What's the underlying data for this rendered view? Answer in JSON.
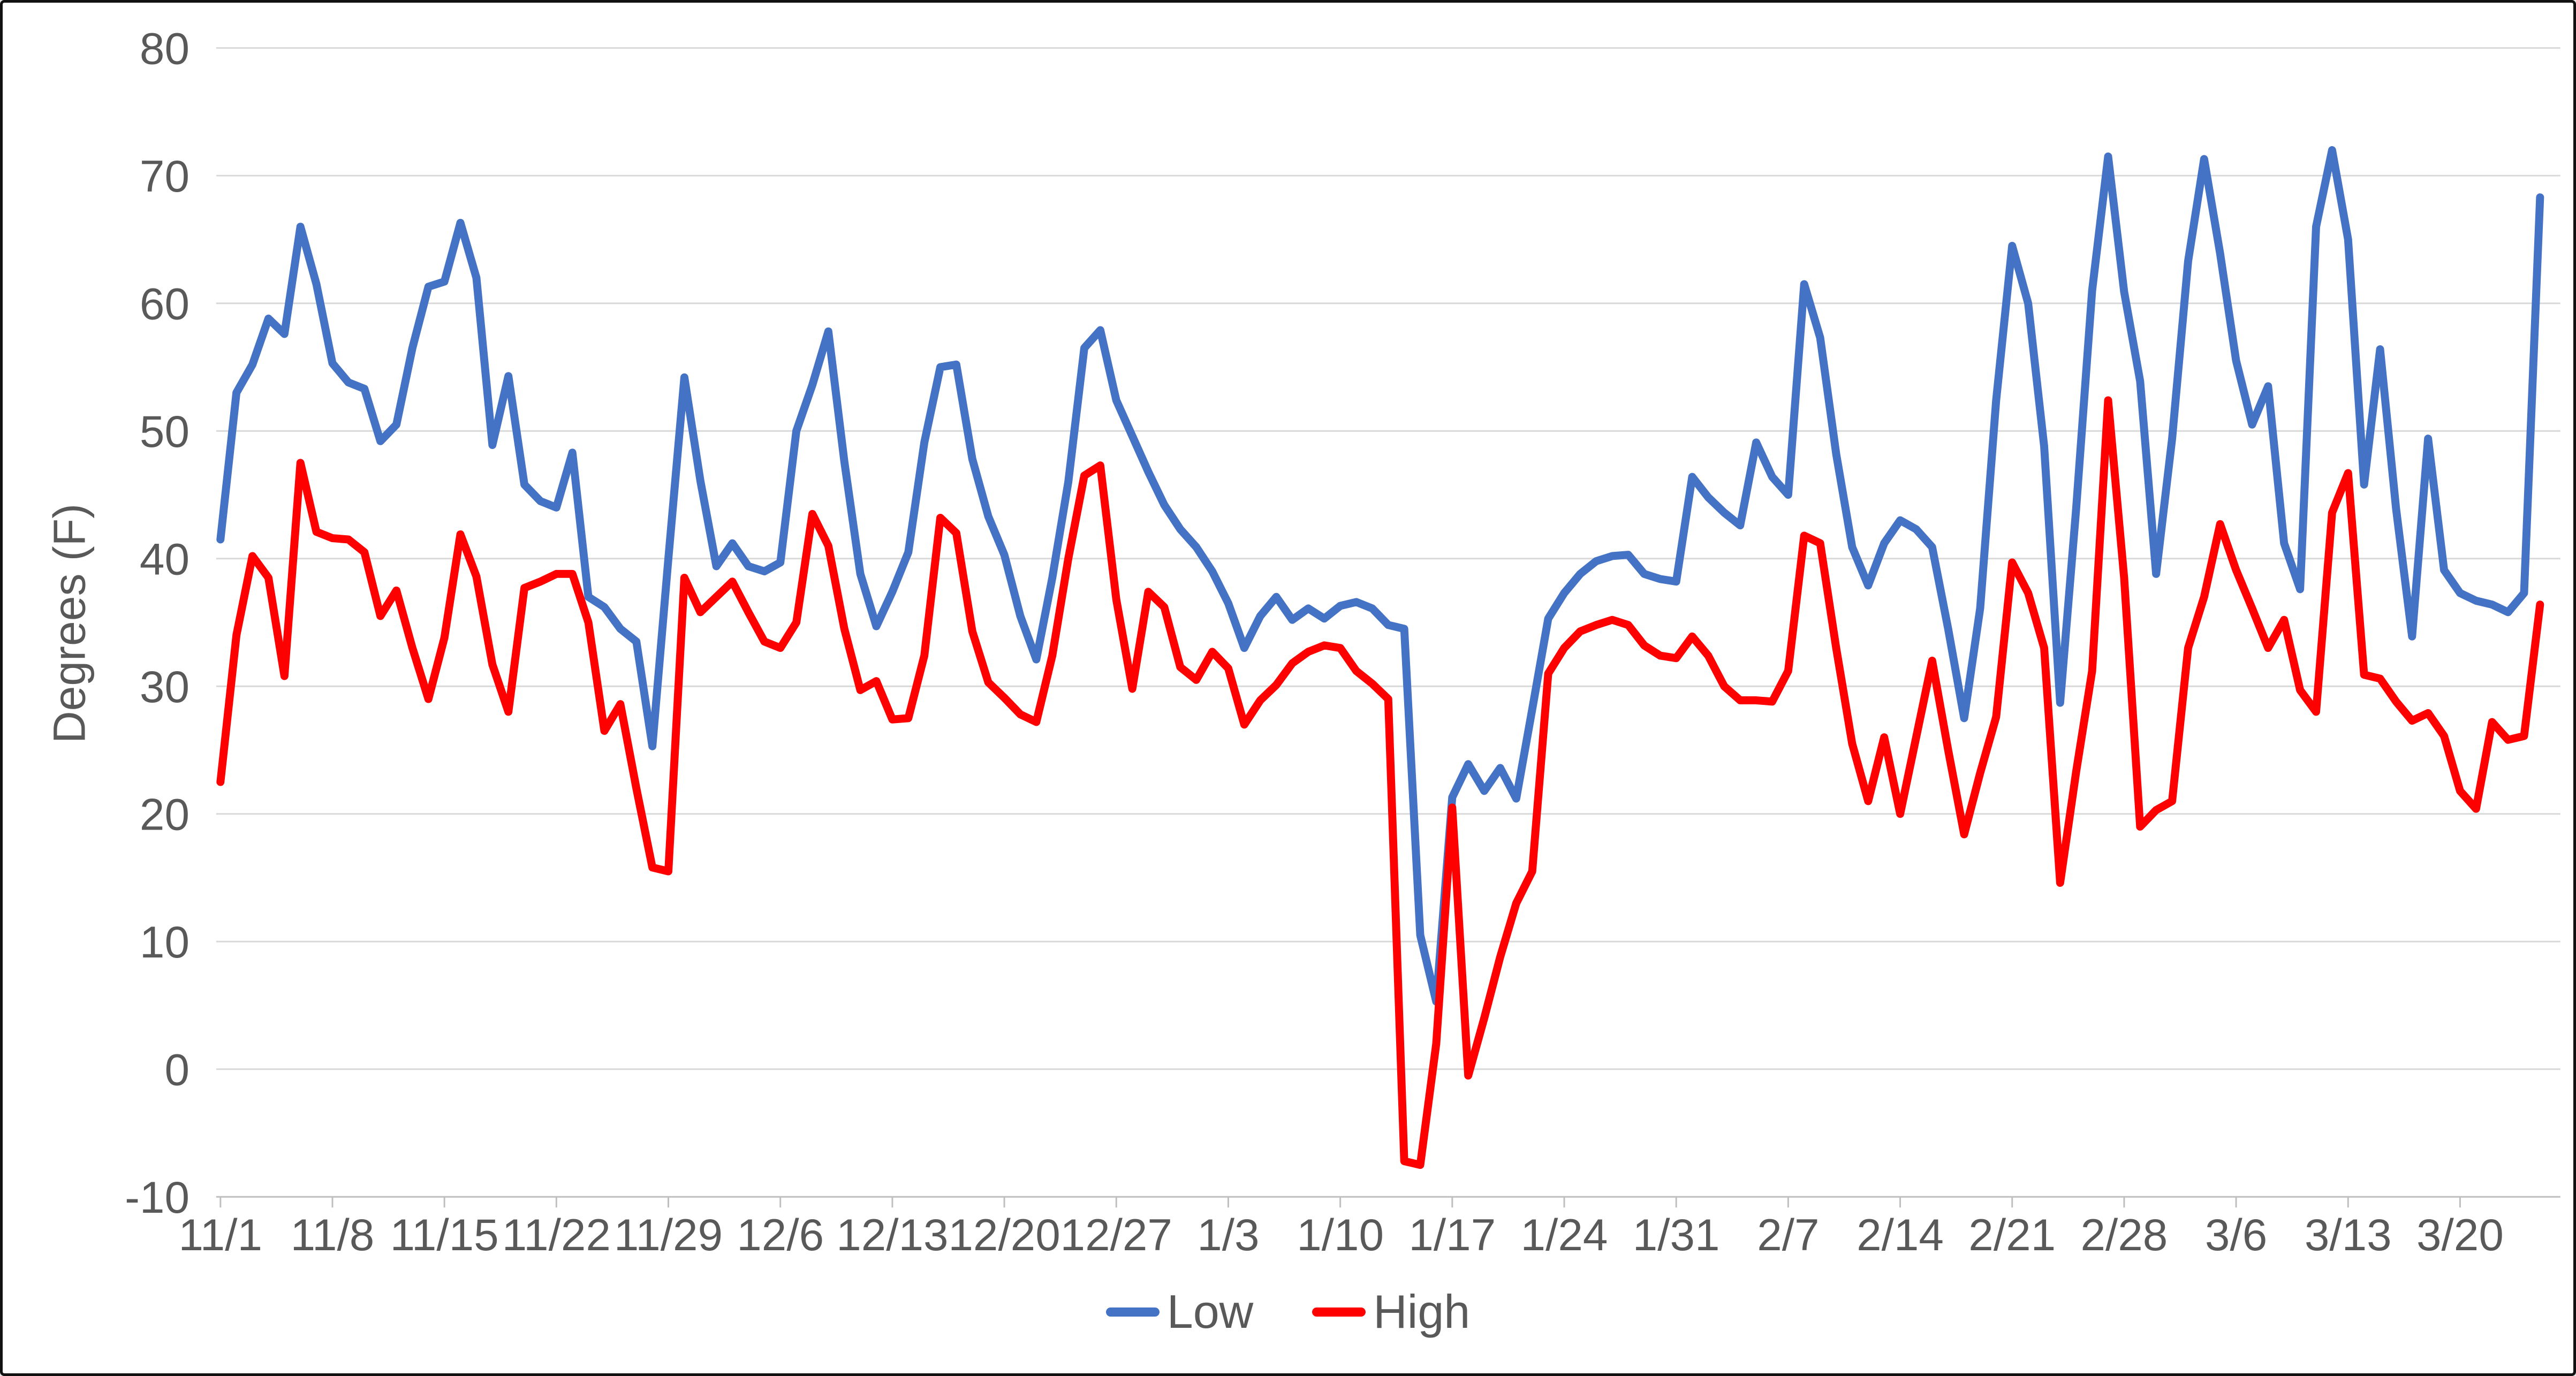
{
  "chart_data": {
    "type": "line",
    "title": "",
    "xlabel": "",
    "ylabel": "Degrees (F)",
    "ylim": [
      -10,
      80
    ],
    "ytick_step": 10,
    "ytick_labels": [
      "80",
      "70",
      "60",
      "50",
      "40",
      "30",
      "20",
      "10",
      "0",
      "-10"
    ],
    "grid": true,
    "legend_position": "bottom-center",
    "x_tick_labels": [
      "11/1",
      "11/8",
      "11/15",
      "11/22",
      "11/29",
      "12/6",
      "12/13",
      "12/20",
      "12/27",
      "1/3",
      "1/10",
      "1/17",
      "1/24",
      "1/31",
      "2/7",
      "2/14",
      "2/21",
      "2/28",
      "3/6",
      "3/13",
      "3/20"
    ],
    "x": [
      "11/1",
      "11/2",
      "11/3",
      "11/4",
      "11/5",
      "11/6",
      "11/7",
      "11/8",
      "11/9",
      "11/10",
      "11/11",
      "11/12",
      "11/13",
      "11/14",
      "11/15",
      "11/16",
      "11/17",
      "11/18",
      "11/19",
      "11/20",
      "11/21",
      "11/22",
      "11/23",
      "11/24",
      "11/25",
      "11/26",
      "11/27",
      "11/28",
      "11/29",
      "11/30",
      "12/1",
      "12/2",
      "12/3",
      "12/4",
      "12/5",
      "12/6",
      "12/7",
      "12/8",
      "12/9",
      "12/10",
      "12/11",
      "12/12",
      "12/13",
      "12/14",
      "12/15",
      "12/16",
      "12/17",
      "12/18",
      "12/19",
      "12/20",
      "12/21",
      "12/22",
      "12/23",
      "12/24",
      "12/25",
      "12/26",
      "12/27",
      "12/28",
      "12/29",
      "12/30",
      "12/31",
      "1/1",
      "1/2",
      "1/3",
      "1/4",
      "1/5",
      "1/6",
      "1/7",
      "1/8",
      "1/9",
      "1/10",
      "1/11",
      "1/12",
      "1/13",
      "1/14",
      "1/15",
      "1/16",
      "1/17",
      "1/18",
      "1/19",
      "1/20",
      "1/21",
      "1/22",
      "1/23",
      "1/24",
      "1/25",
      "1/26",
      "1/27",
      "1/28",
      "1/29",
      "1/30",
      "1/31",
      "2/1",
      "2/2",
      "2/3",
      "2/4",
      "2/5",
      "2/6",
      "2/7",
      "2/8",
      "2/9",
      "2/10",
      "2/11",
      "2/12",
      "2/13",
      "2/14",
      "2/15",
      "2/16",
      "2/17",
      "2/18",
      "2/19",
      "2/20",
      "2/21",
      "2/22",
      "2/23",
      "2/24",
      "2/25",
      "2/26",
      "2/27",
      "2/28",
      "3/1",
      "3/2",
      "3/3",
      "3/4",
      "3/5",
      "3/6",
      "3/7",
      "3/8",
      "3/9",
      "3/10",
      "3/11",
      "3/12",
      "3/13",
      "3/14",
      "3/15",
      "3/16",
      "3/17",
      "3/18",
      "3/19",
      "3/20",
      "3/21",
      "3/22",
      "3/23",
      "3/24",
      "3/25",
      "3/26"
    ],
    "series": [
      {
        "name": "Low",
        "color": "#4472C4",
        "values": [
          41.5,
          53,
          55.2,
          58.8,
          57.6,
          66,
          61.5,
          55.3,
          53.8,
          53.3,
          49.2,
          50.5,
          56.5,
          61.3,
          61.7,
          66.3,
          62,
          48.9,
          54.3,
          45.8,
          44.5,
          44,
          48.3,
          37,
          36.2,
          34.5,
          33.5,
          25.3,
          40,
          54.2,
          46.1,
          39.4,
          41.2,
          39.4,
          39,
          39.7,
          50,
          53.6,
          57.8,
          47.6,
          38.8,
          34.7,
          37.4,
          40.5,
          49.1,
          55,
          55.2,
          47.8,
          43.3,
          40.3,
          35.5,
          32.1,
          38.5,
          46,
          56.5,
          57.9,
          52.4,
          49.6,
          46.8,
          44.2,
          42.3,
          40.9,
          39,
          36.5,
          33,
          35.5,
          37,
          35.2,
          36.1,
          35.3,
          36.3,
          36.6,
          36.1,
          34.8,
          34.5,
          10.5,
          5.3,
          21.3,
          23.9,
          21.8,
          23.6,
          21.2,
          28.2,
          35.3,
          37.3,
          38.8,
          39.8,
          40.2,
          40.3,
          38.8,
          38.4,
          38.2,
          46.4,
          44.8,
          43.6,
          42.6,
          49.1,
          46.4,
          45,
          61.5,
          57.3,
          48.2,
          40.9,
          37.9,
          41.2,
          43,
          42.3,
          40.9,
          34.5,
          27.5,
          36.1,
          52.4,
          64.5,
          60,
          48.8,
          28.7,
          43.9,
          61,
          71.5,
          60.9,
          53.9,
          38.8,
          49.4,
          63.3,
          71.3,
          63.9,
          55.5,
          50.5,
          53.5,
          41.2,
          37.6,
          66,
          72,
          65,
          45.8,
          56.4,
          43.9,
          33.9,
          49.4,
          39.1,
          37.3,
          36.7,
          36.4,
          35.8,
          37.3,
          68.3
        ]
      },
      {
        "name": "High",
        "color": "#FF0000",
        "values": [
          22.5,
          34,
          40.2,
          38.5,
          30.8,
          47.5,
          42.1,
          41.6,
          41.5,
          40.5,
          35.5,
          37.5,
          33,
          29,
          33.8,
          41.9,
          38.6,
          31.7,
          28,
          37.7,
          38.2,
          38.8,
          38.8,
          35,
          26.5,
          28.6,
          22,
          15.8,
          15.5,
          38.5,
          35.8,
          37,
          38.2,
          35.8,
          33.5,
          33,
          35,
          43.5,
          41,
          34.5,
          29.7,
          30.4,
          27.4,
          27.5,
          32.4,
          43.2,
          42,
          34.3,
          30.3,
          29.1,
          27.8,
          27.2,
          32.4,
          40,
          46.5,
          47.3,
          36.8,
          29.8,
          37.4,
          36.2,
          31.5,
          30.5,
          32.7,
          31.4,
          27,
          28.9,
          30.1,
          31.8,
          32.7,
          33.2,
          33,
          31.2,
          30.2,
          29,
          -7.2,
          -7.5,
          2,
          20.5,
          -0.5,
          4,
          8.8,
          13,
          15.5,
          31,
          33,
          34.3,
          34.8,
          35.2,
          34.8,
          33.2,
          32.4,
          32.2,
          33.9,
          32.4,
          30,
          28.9,
          28.9,
          28.8,
          31.2,
          41.8,
          41.2,
          33,
          25.5,
          21,
          26,
          20,
          26,
          32,
          25,
          18.4,
          23.2,
          27.6,
          39.7,
          37.3,
          33,
          14.6,
          23.3,
          31.2,
          52.4,
          38.5,
          19,
          20.3,
          21,
          33,
          37,
          42.7,
          39.1,
          36.1,
          33,
          35.2,
          29.7,
          28,
          43.6,
          46.7,
          30.9,
          30.6,
          28.8,
          27.3,
          27.9,
          26.1,
          21.8,
          20.4,
          27.2,
          25.8,
          26.1,
          36.4
        ]
      }
    ],
    "style": {
      "gridline_color": "#D9D9D9",
      "axis_color": "#BFBFBF",
      "tick_text_color": "#595959",
      "line_width": 15
    }
  }
}
